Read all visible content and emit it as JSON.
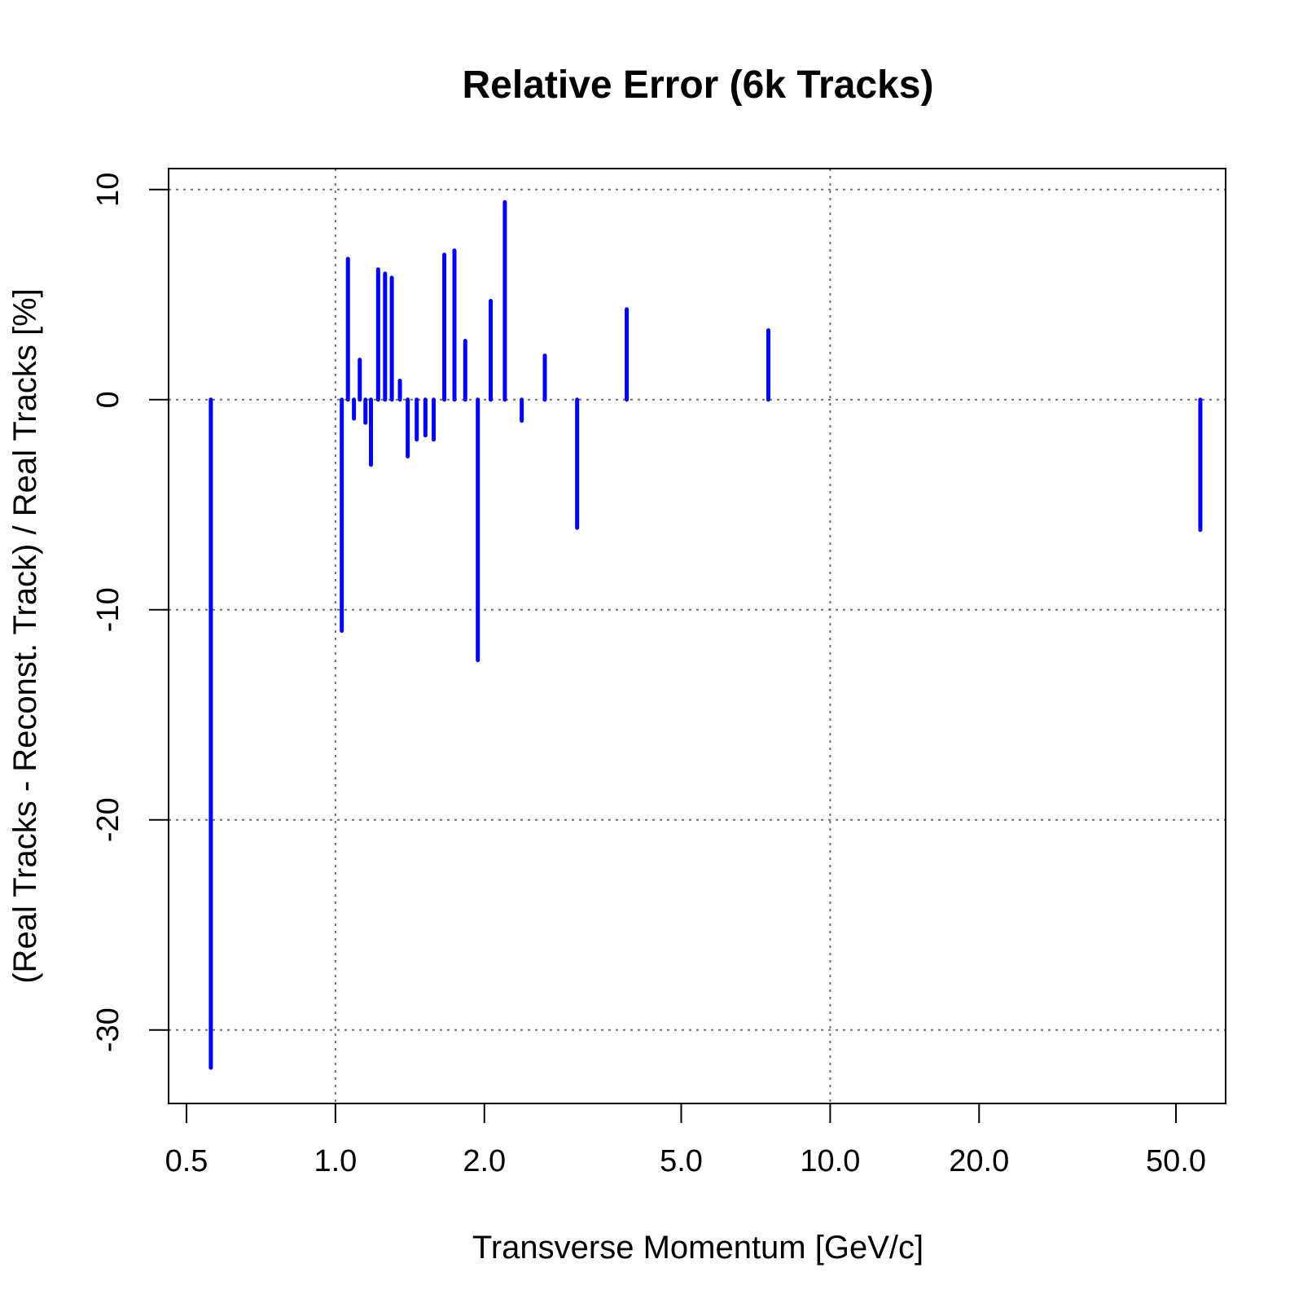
{
  "chart_data": {
    "type": "bar",
    "subtype": "vertical lines from zero (type='h')",
    "title": "Relative Error (6k Tracks)",
    "xlabel": "Transverse Momentum [GeV/c]",
    "ylabel": "(Real Tracks - Reconst. Track) / Real Tracks [%]",
    "x_scale": "log",
    "xlim": [
      0.46,
      63
    ],
    "ylim": [
      -33.5,
      11
    ],
    "x_ticks": [
      0.5,
      1.0,
      2.0,
      5.0,
      10.0,
      20.0,
      50.0
    ],
    "x_tick_labels": [
      "0.5",
      "1.0",
      "2.0",
      "5.0",
      "10.0",
      "20.0",
      "50.0"
    ],
    "y_ticks": [
      10,
      0,
      -10,
      -20,
      -30
    ],
    "y_tick_labels": [
      "10",
      "0",
      "-10",
      "-20",
      "-30"
    ],
    "x_grid_at": [
      1.0,
      10.0
    ],
    "grid": true,
    "legend": "none",
    "series": [
      {
        "color": "#0000ff",
        "points": [
          {
            "x": 0.56,
            "y": -31.8
          },
          {
            "x": 1.03,
            "y": -11.0
          },
          {
            "x": 1.06,
            "y": 6.7
          },
          {
            "x": 1.09,
            "y": -0.9
          },
          {
            "x": 1.12,
            "y": 1.9
          },
          {
            "x": 1.15,
            "y": -1.1
          },
          {
            "x": 1.18,
            "y": -3.1
          },
          {
            "x": 1.22,
            "y": 6.2
          },
          {
            "x": 1.26,
            "y": 6.0
          },
          {
            "x": 1.3,
            "y": 5.8
          },
          {
            "x": 1.35,
            "y": 0.9
          },
          {
            "x": 1.4,
            "y": -2.7
          },
          {
            "x": 1.46,
            "y": -1.9
          },
          {
            "x": 1.52,
            "y": -1.7
          },
          {
            "x": 1.58,
            "y": -1.9
          },
          {
            "x": 1.66,
            "y": 6.9
          },
          {
            "x": 1.74,
            "y": 7.1
          },
          {
            "x": 1.83,
            "y": 2.8
          },
          {
            "x": 1.94,
            "y": -12.4
          },
          {
            "x": 2.06,
            "y": 4.7
          },
          {
            "x": 2.2,
            "y": 9.4
          },
          {
            "x": 2.38,
            "y": -1.0
          },
          {
            "x": 2.65,
            "y": 2.1
          },
          {
            "x": 3.08,
            "y": -6.1
          },
          {
            "x": 3.88,
            "y": 4.3
          },
          {
            "x": 7.5,
            "y": 3.3
          },
          {
            "x": 56.0,
            "y": -6.2
          }
        ]
      }
    ]
  }
}
